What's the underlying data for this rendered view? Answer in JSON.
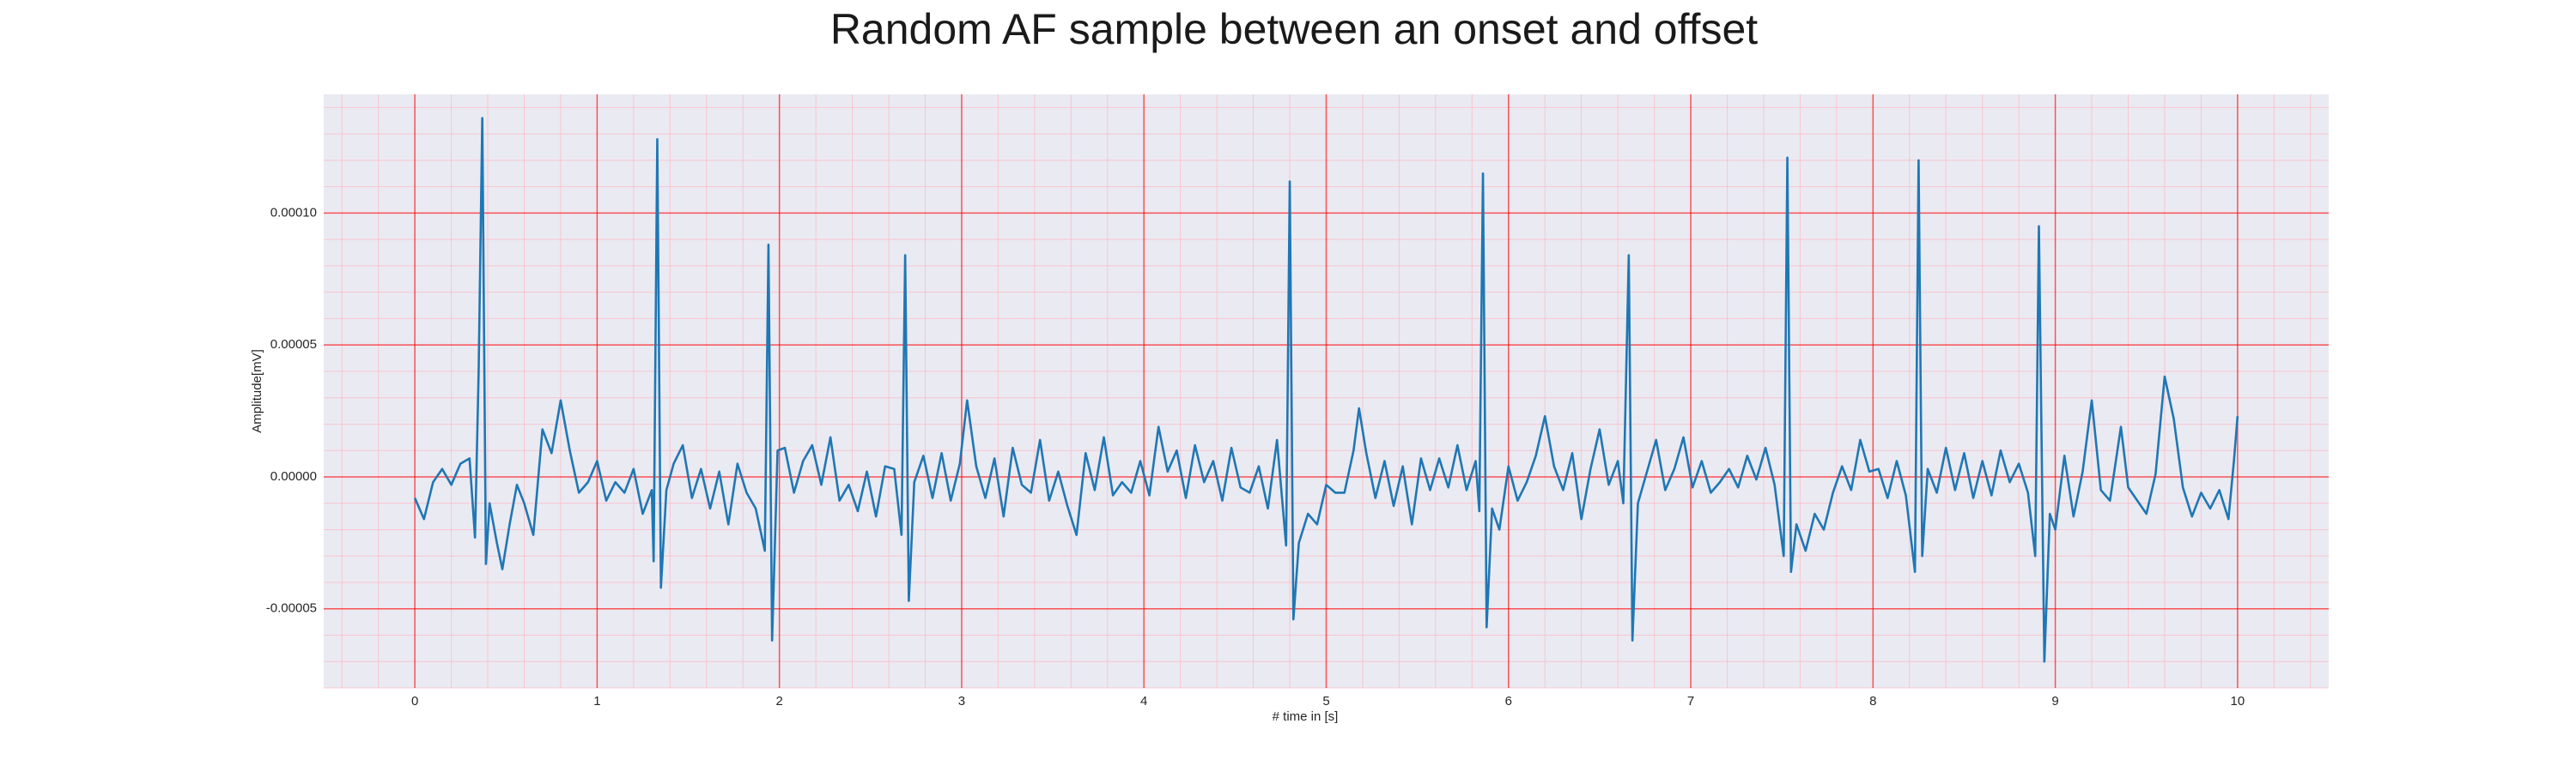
{
  "chart_data": {
    "type": "line",
    "title": "Random AF sample between an onset and offset",
    "xlabel": "# time in [s]",
    "ylabel": "Amplitude[mV]",
    "color": "#1f77b4",
    "grid": true,
    "xlim": [
      -0.5,
      10.5
    ],
    "ylim": [
      -8e-05,
      0.000145
    ],
    "xticks": [
      0,
      1,
      2,
      3,
      4,
      5,
      6,
      7,
      8,
      9,
      10
    ],
    "yticks": [
      {
        "value": -5e-05,
        "label": "-0.00005"
      },
      {
        "value": 0,
        "label": "0.00000"
      },
      {
        "value": 5e-05,
        "label": "0.00005"
      },
      {
        "value": 0.0001,
        "label": "0.00010"
      }
    ],
    "x": [
      0,
      0.05,
      0.1,
      0.15,
      0.2,
      0.25,
      0.3,
      0.33,
      0.35,
      0.37,
      0.39,
      0.41,
      0.45,
      0.48,
      0.52,
      0.56,
      0.6,
      0.65,
      0.7,
      0.75,
      0.8,
      0.85,
      0.9,
      0.95,
      1.0,
      1.05,
      1.1,
      1.15,
      1.2,
      1.25,
      1.3,
      1.31,
      1.33,
      1.35,
      1.38,
      1.42,
      1.47,
      1.52,
      1.57,
      1.62,
      1.67,
      1.72,
      1.77,
      1.82,
      1.87,
      1.92,
      1.94,
      1.96,
      1.99,
      2.03,
      2.08,
      2.13,
      2.18,
      2.23,
      2.28,
      2.33,
      2.38,
      2.43,
      2.48,
      2.53,
      2.58,
      2.63,
      2.67,
      2.69,
      2.71,
      2.74,
      2.79,
      2.84,
      2.89,
      2.94,
      2.99,
      3.03,
      3.08,
      3.13,
      3.18,
      3.23,
      3.28,
      3.33,
      3.38,
      3.43,
      3.48,
      3.53,
      3.58,
      3.63,
      3.68,
      3.73,
      3.78,
      3.83,
      3.88,
      3.93,
      3.98,
      4.03,
      4.08,
      4.13,
      4.18,
      4.23,
      4.28,
      4.33,
      4.38,
      4.43,
      4.48,
      4.53,
      4.58,
      4.63,
      4.68,
      4.73,
      4.78,
      4.8,
      4.82,
      4.85,
      4.9,
      4.95,
      5.0,
      5.05,
      5.1,
      5.15,
      5.18,
      5.22,
      5.27,
      5.32,
      5.37,
      5.42,
      5.47,
      5.52,
      5.57,
      5.62,
      5.67,
      5.72,
      5.77,
      5.82,
      5.84,
      5.86,
      5.88,
      5.91,
      5.95,
      6.0,
      6.05,
      6.1,
      6.15,
      6.2,
      6.25,
      6.3,
      6.35,
      6.4,
      6.45,
      6.5,
      6.55,
      6.6,
      6.63,
      6.66,
      6.68,
      6.71,
      6.76,
      6.81,
      6.86,
      6.91,
      6.96,
      7.01,
      7.06,
      7.11,
      7.16,
      7.21,
      7.26,
      7.31,
      7.36,
      7.41,
      7.46,
      7.51,
      7.53,
      7.55,
      7.58,
      7.63,
      7.68,
      7.73,
      7.78,
      7.83,
      7.88,
      7.93,
      7.98,
      8.03,
      8.08,
      8.13,
      8.18,
      8.23,
      8.25,
      8.27,
      8.3,
      8.35,
      8.4,
      8.45,
      8.5,
      8.55,
      8.6,
      8.65,
      8.7,
      8.75,
      8.8,
      8.85,
      8.89,
      8.91,
      8.94,
      8.97,
      9.0,
      9.05,
      9.1,
      9.15,
      9.2,
      9.25,
      9.3,
      9.36,
      9.4,
      9.45,
      9.5,
      9.55,
      9.6,
      9.65,
      9.7,
      9.75,
      9.8,
      9.85,
      9.9,
      9.95,
      9.98,
      10.0
    ],
    "values": [
      -8e-06,
      -1.6e-05,
      -2e-06,
      3e-06,
      -3e-06,
      5e-06,
      7e-06,
      -2.3e-05,
      4e-05,
      0.000136,
      -3.3e-05,
      -1e-05,
      -2.5e-05,
      -3.5e-05,
      -1.8e-05,
      -3e-06,
      -1e-05,
      -2.2e-05,
      1.8e-05,
      9e-06,
      2.9e-05,
      1e-05,
      -6e-06,
      -2e-06,
      6e-06,
      -9e-06,
      -2e-06,
      -6e-06,
      3e-06,
      -1.4e-05,
      -5e-06,
      -3.2e-05,
      0.000128,
      -4.2e-05,
      -5e-06,
      5e-06,
      1.2e-05,
      -8e-06,
      3e-06,
      -1.2e-05,
      2e-06,
      -1.8e-05,
      5e-06,
      -6e-06,
      -1.2e-05,
      -2.8e-05,
      8.8e-05,
      -6.2e-05,
      1e-05,
      1.1e-05,
      -6e-06,
      6e-06,
      1.2e-05,
      -3e-06,
      1.5e-05,
      -9e-06,
      -3e-06,
      -1.3e-05,
      2e-06,
      -1.5e-05,
      4e-06,
      3e-06,
      -2.2e-05,
      8.4e-05,
      -4.7e-05,
      -2e-06,
      8e-06,
      -8e-06,
      9e-06,
      -9e-06,
      5e-06,
      2.9e-05,
      4e-06,
      -8e-06,
      7e-06,
      -1.5e-05,
      1.1e-05,
      -3e-06,
      -6e-06,
      1.4e-05,
      -9e-06,
      2e-06,
      -1.1e-05,
      -2.2e-05,
      9e-06,
      -5e-06,
      1.5e-05,
      -7e-06,
      -2e-06,
      -6e-06,
      6e-06,
      -7e-06,
      1.9e-05,
      2e-06,
      1e-05,
      -8e-06,
      1.2e-05,
      -2e-06,
      6e-06,
      -9e-06,
      1.1e-05,
      -4e-06,
      -6e-06,
      4e-06,
      -1.2e-05,
      1.4e-05,
      -2.6e-05,
      0.000112,
      -5.4e-05,
      -2.5e-05,
      -1.4e-05,
      -1.8e-05,
      -3e-06,
      -6e-06,
      -6e-06,
      1e-05,
      2.6e-05,
      9e-06,
      -8e-06,
      6e-06,
      -1.1e-05,
      4e-06,
      -1.8e-05,
      7e-06,
      -5e-06,
      7e-06,
      -4e-06,
      1.2e-05,
      -5e-06,
      6e-06,
      -1.3e-05,
      0.000115,
      -5.7e-05,
      -1.2e-05,
      -2e-05,
      4e-06,
      -9e-06,
      -2e-06,
      8e-06,
      2.3e-05,
      4e-06,
      -5e-06,
      9e-06,
      -1.6e-05,
      3e-06,
      1.8e-05,
      -3e-06,
      6e-06,
      -1e-05,
      8.4e-05,
      -6.2e-05,
      -1e-05,
      2e-06,
      1.4e-05,
      -5e-06,
      3e-06,
      1.5e-05,
      -4e-06,
      6e-06,
      -6e-06,
      -2e-06,
      3e-06,
      -4e-06,
      8e-06,
      -1e-06,
      1.1e-05,
      -3e-06,
      -3e-05,
      0.000121,
      -3.6e-05,
      -1.8e-05,
      -2.8e-05,
      -1.4e-05,
      -2e-05,
      -6e-06,
      4e-06,
      -5e-06,
      1.4e-05,
      2e-06,
      3e-06,
      -8e-06,
      6e-06,
      -7e-06,
      -3.6e-05,
      0.00012,
      -3e-05,
      3e-06,
      -6e-06,
      1.1e-05,
      -5e-06,
      9e-06,
      -8e-06,
      6e-06,
      -7e-06,
      1e-05,
      -2e-06,
      5e-06,
      -6e-06,
      -3e-05,
      9.5e-05,
      -7e-05,
      -1.4e-05,
      -2e-05,
      8e-06,
      -1.5e-05,
      2e-06,
      2.9e-05,
      -5e-06,
      -9e-06,
      1.9e-05,
      -4e-06,
      -9e-06,
      -1.4e-05,
      1e-06,
      3.8e-05,
      2.2e-05,
      -4e-06,
      -1.5e-05,
      -6e-06,
      -1.2e-05,
      -5e-06,
      -1.6e-05,
      6e-06,
      2.3e-05
    ]
  }
}
